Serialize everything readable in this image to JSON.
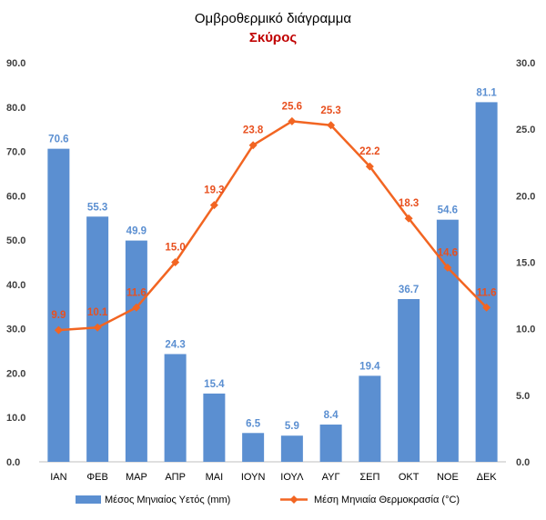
{
  "title": "Ομβροθερμικό διάγραμμα",
  "subtitle": "Σκύρος",
  "colors": {
    "bars": "#5b8fd1",
    "line": "#f26522",
    "line_labels": "#e8501f",
    "subtitle": "#c00000"
  },
  "chart_data": {
    "type": "bar",
    "title": "Ομβροθερμικό διάγραμμα",
    "subtitle": "Σκύρος",
    "categories": [
      "ΙΑΝ",
      "ΦΕΒ",
      "ΜΑΡ",
      "ΑΠΡ",
      "ΜΑΙ",
      "ΙΟΥΝ",
      "ΙΟΥΛ",
      "ΑΥΓ",
      "ΣΕΠ",
      "ΟΚΤ",
      "ΝΟΕ",
      "ΔΕΚ"
    ],
    "series": [
      {
        "name": "Μέσος Μηνιαίος Υετός (mm)",
        "type": "bar",
        "axis": "left",
        "values": [
          70.6,
          55.3,
          49.9,
          24.3,
          15.4,
          6.5,
          5.9,
          8.4,
          19.4,
          36.7,
          54.6,
          81.1
        ]
      },
      {
        "name": "Μέση Μηνιαία Θερμοκρασία (°C)",
        "type": "line",
        "axis": "right",
        "values": [
          9.9,
          10.1,
          11.6,
          15.0,
          19.3,
          23.8,
          25.6,
          25.3,
          22.2,
          18.3,
          14.6,
          11.6
        ]
      }
    ],
    "ylim": [
      0,
      90
    ],
    "y2lim": [
      0,
      30
    ],
    "yticks": [
      "0.0",
      "10.0",
      "20.0",
      "30.0",
      "40.0",
      "50.0",
      "60.0",
      "70.0",
      "80.0",
      "90.0"
    ],
    "y2ticks": [
      "0.0",
      "5.0",
      "10.0",
      "15.0",
      "20.0",
      "25.0",
      "30.0"
    ],
    "grid": false,
    "legend": "bottom"
  }
}
